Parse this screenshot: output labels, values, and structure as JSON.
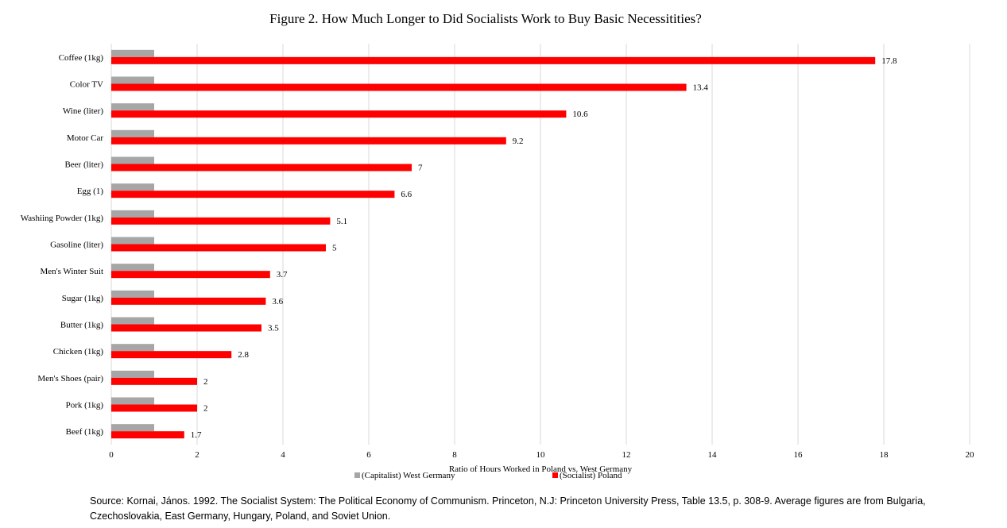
{
  "chart_data": {
    "type": "bar",
    "orientation": "horizontal",
    "title": "Figure 2. How Much Longer to Did Socialists Work to Buy Basic Necessitities?",
    "xlabel": "Ratio of Hours Worked in Poland vs. West Germany",
    "ylabel": "",
    "xlim": [
      0,
      20
    ],
    "xticks": [
      "0",
      "2",
      "4",
      "6",
      "8",
      "10",
      "12",
      "14",
      "16",
      "18",
      "20"
    ],
    "grid": "vertical",
    "legend_position": "bottom",
    "categories": [
      "Coffee (1kg)",
      "Color TV",
      "Wine (liter)",
      "Motor Car",
      "Beer (liter)",
      "Egg (1)",
      "Washiing Powder (1kg)",
      "Gasoline (liter)",
      "Men's Winter Suit",
      "Sugar (1kg)",
      "Butter (1kg)",
      "Chicken (1kg)",
      "Men's Shoes (pair)",
      "Pork (1kg)",
      "Beef (1kg)"
    ],
    "series": [
      {
        "name": "(Capitalist) West Germany",
        "color": "#a6a6a6",
        "values": [
          1,
          1,
          1,
          1,
          1,
          1,
          1,
          1,
          1,
          1,
          1,
          1,
          1,
          1,
          1
        ]
      },
      {
        "name": "(Socialist) Poland",
        "color": "#ff0000",
        "values": [
          17.8,
          13.4,
          10.6,
          9.2,
          7,
          6.6,
          5.1,
          5,
          3.7,
          3.6,
          3.5,
          2.8,
          2,
          2,
          1.7
        ],
        "data_labels": [
          "17.8",
          "13.4",
          "10.6",
          "9.2",
          "7",
          "6.6",
          "5.1",
          "5",
          "3.7",
          "3.6",
          "3.5",
          "2.8",
          "2",
          "2",
          "1.7"
        ]
      }
    ]
  },
  "source_note": "Source: Kornai, János. 1992.  The Socialist System: The Political Economy of Communism. Princeton, N.J: Princeton University Press, Table 13.5, p. 308-9.  Average figures are from Bulgaria, Czechoslovakia, East Germany, Hungary, Poland, and Soviet Union."
}
